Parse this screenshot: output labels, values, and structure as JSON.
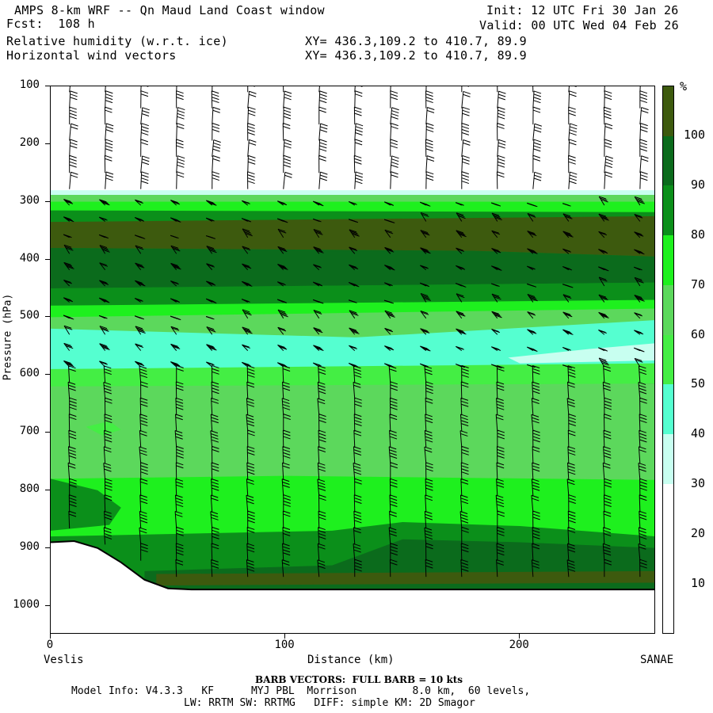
{
  "header": {
    "line1_left": "AMPS 8-km WRF -- Qn Maud Land Coast window",
    "line2_left": "Fcst:  108 h",
    "line3_left": "Relative humidity (w.r.t. ice)",
    "line4_left": "Horizontal wind vectors",
    "line1_right": "Init: 12 UTC Fri 30 Jan 26",
    "line2_right": "Valid: 00 UTC Wed 04 Feb 26",
    "line3_mid": "XY= 436.3,109.2 to 410.7, 89.9",
    "line4_mid": "XY= 436.3,109.2 to 410.7, 89.9"
  },
  "axes": {
    "ylabel": "Pressure (hPa)",
    "xlabel": "Distance (km)",
    "left_station": "Veslis",
    "right_station": "SANAE"
  },
  "colorbar": {
    "unit": "%",
    "labels": [
      "100",
      "90",
      "80",
      "70",
      "60",
      "50",
      "40",
      "30",
      "20",
      "10"
    ],
    "colors": [
      "#3d5a0e",
      "#0b6b1c",
      "#0b8f1a",
      "#1ef01e",
      "#5cd85c",
      "#44ee44",
      "#55ffd0",
      "#c8fff0",
      "#ffffff",
      "#ffffff",
      "#ffffff"
    ]
  },
  "footer": {
    "barb_note": "BARB VECTORS:  FULL BARB = 10 kts",
    "model_info1": "Model Info: V4.3.3   KF      MYJ PBL  Morrison         8.0 km,  60 levels,",
    "model_info2": "LW: RRTM SW: RRTMG   DIFF: simple KM: 2D Smagor"
  },
  "chart_data": {
    "type": "heatmap",
    "title": "Relative humidity (w.r.t. ice)",
    "xlabel": "Distance (km)",
    "ylabel": "Pressure (hPa)",
    "xlim": [
      0,
      258
    ],
    "ylim": [
      1050,
      100
    ],
    "y_inverted": true,
    "x_ticks": [
      0,
      100,
      200
    ],
    "y_ticks": [
      100,
      200,
      300,
      400,
      500,
      600,
      700,
      800,
      900,
      1000
    ],
    "contour_levels_pct": [
      10,
      20,
      30,
      40,
      50,
      60,
      70,
      80,
      90,
      100
    ],
    "level_colors": {
      "lt30": "#ffffff",
      "30-40": "#c8fff0",
      "40-50": "#55ffd0",
      "50-60": "#44ee44",
      "60-70": "#5cd85c",
      "70-80": "#1ef01e",
      "80-90": "#0b8f1a",
      "90-100": "#0b6b1c",
      "gt100": "#3d5a0e"
    },
    "layers": [
      {
        "p_top": 100,
        "p_bottom": 280,
        "rh": "<30"
      },
      {
        "p_top": 280,
        "p_bottom": 300,
        "rh": "40-70"
      },
      {
        "p_top": 300,
        "p_bottom": 330,
        "rh": "80-90"
      },
      {
        "p_top": 330,
        "p_bottom": 380,
        "rh": ">100"
      },
      {
        "p_top": 380,
        "p_bottom": 450,
        "rh": "90-100"
      },
      {
        "p_top": 450,
        "p_bottom": 520,
        "rh": "70-80"
      },
      {
        "p_top": 520,
        "p_bottom": 620,
        "rh": "40-50"
      },
      {
        "p_top": 620,
        "p_bottom": 780,
        "rh": "60-70"
      },
      {
        "p_top": 780,
        "p_bottom": 880,
        "rh": "70-80"
      },
      {
        "p_top": 880,
        "p_bottom": 970,
        "rh": "80-100"
      }
    ],
    "terrain_pressure_hPa": [
      [
        0,
        890
      ],
      [
        10,
        888
      ],
      [
        20,
        900
      ],
      [
        30,
        925
      ],
      [
        40,
        955
      ],
      [
        50,
        970
      ],
      [
        60,
        972
      ],
      [
        100,
        972
      ],
      [
        258,
        972
      ]
    ],
    "barb_full_kts": 10
  }
}
